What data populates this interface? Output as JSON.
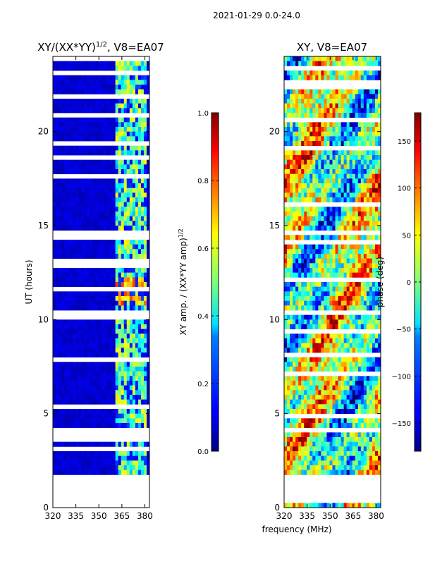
{
  "figure_title": "2021-01-29 0.0-24.0",
  "shared_xlabel": "frequency (MHz)",
  "chart_data": [
    {
      "type": "heatmap",
      "title_main": "XY/(XX*YY)",
      "title_sup": "1/2",
      "title_rest": ", V8=EA07",
      "ylabel": "UT (hours)",
      "xlim": [
        320,
        383
      ],
      "ylim": [
        0,
        24
      ],
      "x_ticks": [
        320,
        335,
        350,
        365,
        380
      ],
      "y_ticks": [
        0,
        5,
        10,
        15,
        20
      ],
      "colorbar": {
        "label_main": "XY amp. / (XX*YY amp)",
        "label_sup": "1/2",
        "range": [
          0.0,
          1.0
        ],
        "ticks": [
          "0.0",
          "0.2",
          "0.4",
          "0.6",
          "0.8",
          "1.0"
        ],
        "tick_values": [
          0.0,
          0.2,
          0.4,
          0.6,
          0.8,
          1.0
        ]
      }
    },
    {
      "type": "heatmap",
      "title_main": "XY, V8=EA07",
      "ylabel": "",
      "xlim": [
        320,
        383
      ],
      "ylim": [
        0,
        24
      ],
      "x_ticks": [
        320,
        335,
        350,
        365,
        380
      ],
      "y_ticks": [
        0,
        5,
        10,
        15,
        20
      ],
      "colorbar": {
        "label_main": "phase (deg)",
        "range": [
          -180,
          180
        ],
        "ticks": [
          "−150",
          "−100",
          "−50",
          "0",
          "50",
          "100",
          "150"
        ],
        "tick_values": [
          -150,
          -100,
          -50,
          0,
          50,
          100,
          150
        ]
      }
    }
  ]
}
